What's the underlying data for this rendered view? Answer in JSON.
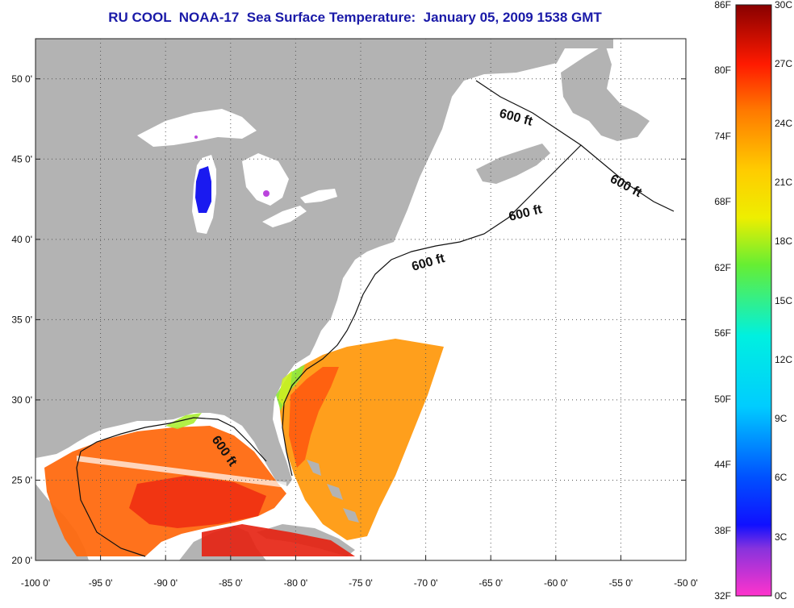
{
  "title": "RU COOL  NOAA-17  Sea Surface Temperature:  January 05, 2009 1538 GMT",
  "map": {
    "lon_range": [
      -100,
      -50
    ],
    "lat_range": [
      20,
      52.5
    ],
    "lon_ticks": [
      "-100 0'",
      "-95 0'",
      "-90 0'",
      "-85 0'",
      "-80 0'",
      "-75 0'",
      "-70 0'",
      "-65 0'",
      "-60 0'",
      "-55 0'",
      "-50 0'"
    ],
    "lat_ticks": [
      "20 0'",
      "25 0'",
      "30 0'",
      "35 0'",
      "40 0'",
      "45 0'",
      "50 0'"
    ],
    "contour_labels": [
      "600 ft",
      "600 ft",
      "600 ft",
      "600 ft",
      "600 ft"
    ]
  },
  "colorbar": {
    "fahrenheit": [
      "86F",
      "80F",
      "74F",
      "68F",
      "62F",
      "56F",
      "50F",
      "44F",
      "38F",
      "32F"
    ],
    "celsius": [
      "30C",
      "27C",
      "24C",
      "21C",
      "18C",
      "15C",
      "12C",
      "9C",
      "6C",
      "3C",
      "0C"
    ]
  },
  "colors": {
    "land": "#b3b3b3",
    "ocean": "#ffffff",
    "title": "#1a1aa8"
  }
}
